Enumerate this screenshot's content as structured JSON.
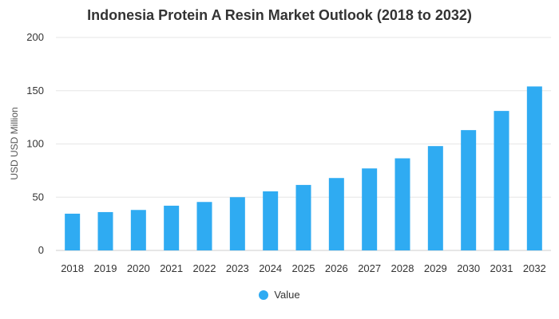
{
  "chart_data": {
    "type": "bar",
    "title": "Indonesia Protein A Resin Market Outlook (2018 to 2032)",
    "xlabel": "",
    "ylabel": "USD USD Million",
    "categories": [
      "2018",
      "2019",
      "2020",
      "2021",
      "2022",
      "2023",
      "2024",
      "2025",
      "2026",
      "2027",
      "2028",
      "2029",
      "2030",
      "2031",
      "2032"
    ],
    "series": [
      {
        "name": "Value",
        "values": [
          34.5,
          36,
          38,
          42,
          45.5,
          50,
          55.5,
          61.5,
          68,
          77,
          86.5,
          98,
          113,
          131,
          154
        ]
      }
    ],
    "ylim": [
      0,
      200
    ],
    "yticks": [
      0,
      50,
      100,
      150,
      200
    ],
    "grid": true,
    "legend_position": "bottom-center",
    "colors": {
      "bar": "#2fabf2",
      "grid": "#e6e6e6",
      "axis": "#cccccc"
    }
  }
}
